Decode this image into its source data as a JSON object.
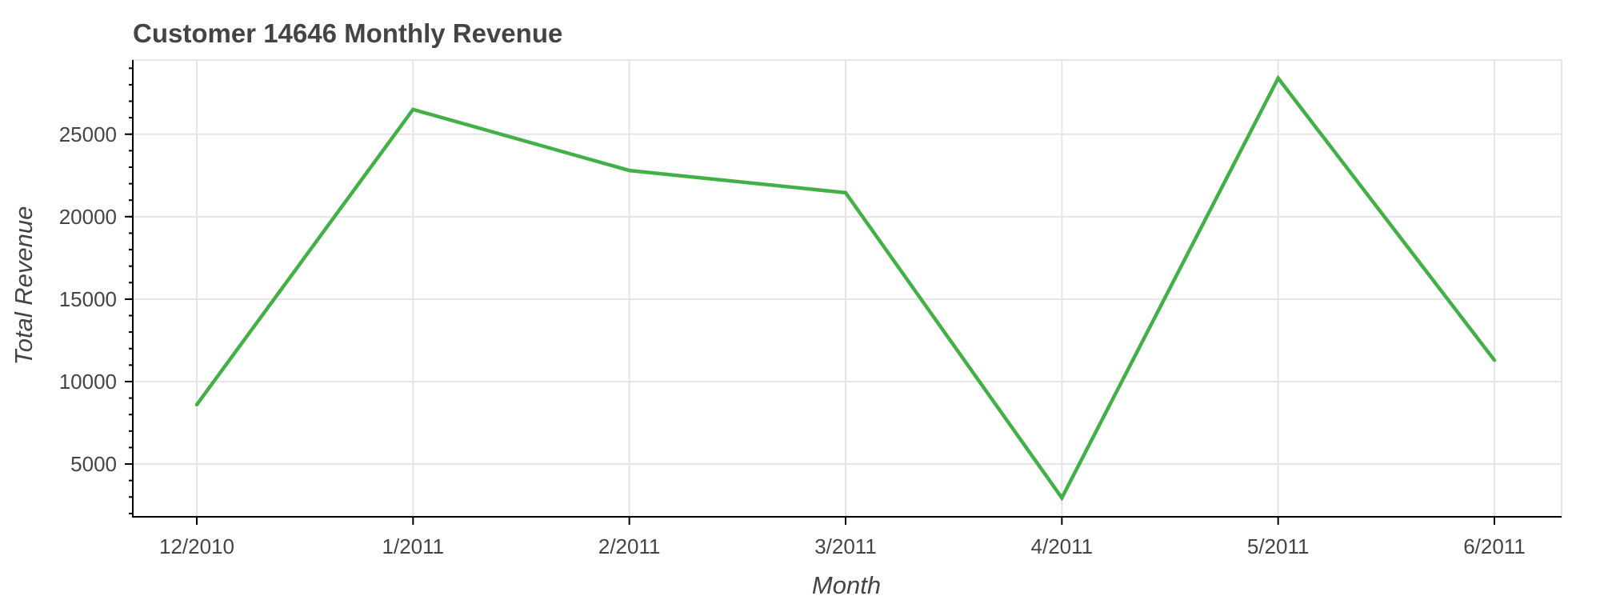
{
  "chart_data": {
    "type": "line",
    "title": "Customer 14646 Monthly Revenue",
    "xlabel": "Month",
    "ylabel": "Total Revenue",
    "categories": [
      "12/2010",
      "1/2011",
      "2/2011",
      "3/2011",
      "4/2011",
      "5/2011",
      "6/2011"
    ],
    "series": [
      {
        "values": [
          8600,
          26500,
          22800,
          21450,
          2950,
          28400,
          11300
        ],
        "color": "#43b047"
      }
    ],
    "ylim": [
      1800,
      29500
    ],
    "yticks": [
      5000,
      10000,
      15000,
      20000,
      25000
    ],
    "grid": true,
    "gridcolor": "#e5e5e5",
    "axiscolor": "#000000"
  }
}
